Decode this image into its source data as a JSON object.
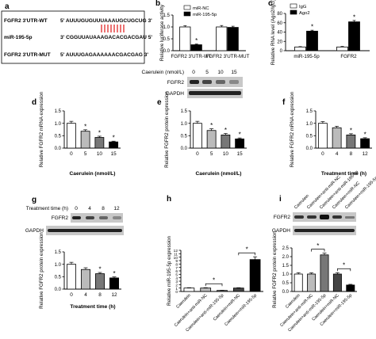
{
  "panel_a": {
    "letter": "a",
    "rows": [
      {
        "label": "FGFR2 3'UTR-WT",
        "seq": "5' AUUUGUGUUUAAAUGCUGCUG 3'"
      },
      {
        "label": "miR-195-5p",
        "seq": "3' CGGUUAUAAAGACACGACGAU 5'"
      },
      {
        "label": "FGFR2 3'UTR-MUT",
        "seq": "5' AUUUGAGAAAAAACGACGAG 3'"
      }
    ]
  },
  "wb_top": {
    "treatment_label": "Caerulein (nmol/L)",
    "lanes": [
      "0",
      "5",
      "10",
      "15"
    ],
    "bands": [
      "FGFR2",
      "GAPDH"
    ]
  },
  "wb_g": {
    "treatment_label": "Treatment time (h)",
    "lanes": [
      "0",
      "4",
      "8",
      "12"
    ],
    "bands": [
      "FGFR2",
      "GAPDH"
    ]
  },
  "wb_i": {
    "lanes": [
      "Caerulein",
      "Caerulein+anti-miR-NC",
      "Caerulein+anti-miR-195-5p",
      "Caerulein+miR-NC",
      "Caerulein+miR-195-5p"
    ],
    "bands": [
      "FGFR2",
      "GAPDH"
    ]
  },
  "chart_data": [
    {
      "id": "b",
      "type": "bar",
      "letter": "b",
      "ylabel": "Relative luciferase activity",
      "ylim": [
        0,
        1.5
      ],
      "ticks": [
        0,
        0.5,
        1.0,
        1.5
      ],
      "groups": [
        "FGFR2 3'UTR-WT",
        "FGFR2 3'UTR-MUT"
      ],
      "series": [
        {
          "name": "miR-NC",
          "values": [
            1.0,
            1.0
          ],
          "errors": [
            0.05,
            0.06
          ],
          "color": "#ffffff"
        },
        {
          "name": "miR-195-5p",
          "values": [
            0.25,
            0.98
          ],
          "errors": [
            0.03,
            0.05
          ],
          "color": "#000000"
        }
      ],
      "significance": [
        "*",
        ""
      ],
      "legend": "top-right"
    },
    {
      "id": "c",
      "type": "bar",
      "letter": "c",
      "ylabel": "Relative RNA level (Ago2/IgG)",
      "ylim": [
        0,
        80
      ],
      "ticks": [
        0,
        20,
        40,
        60,
        80
      ],
      "groups": [
        "miR-195-5p",
        "FGFR2"
      ],
      "series": [
        {
          "name": "IgG",
          "values": [
            8,
            8
          ],
          "errors": [
            0.8,
            1.2
          ],
          "color": "#ffffff"
        },
        {
          "name": "Ago2",
          "values": [
            42,
            62
          ],
          "errors": [
            2,
            3
          ],
          "color": "#000000"
        }
      ],
      "significance": [
        "*",
        "*"
      ],
      "legend": "top-left"
    },
    {
      "id": "d",
      "type": "bar",
      "letter": "d",
      "ylabel": "Relative FGFR2 mRNA expression",
      "xlabel": "Caerulein (nmol/L)",
      "ylim": [
        0,
        1.5
      ],
      "ticks": [
        0,
        0.5,
        1.0,
        1.5
      ],
      "categories": [
        "0",
        "5",
        "10",
        "15"
      ],
      "values": [
        1.0,
        0.68,
        0.43,
        0.25
      ],
      "errors": [
        0.08,
        0.06,
        0.05,
        0.03
      ],
      "colors": [
        "#ffffff",
        "#bbbbbb",
        "#777777",
        "#000000"
      ],
      "significance": [
        "",
        "*",
        "*",
        "*"
      ]
    },
    {
      "id": "e",
      "type": "bar",
      "letter": "e",
      "ylabel": "Relative FGFR2 protein expression",
      "xlabel": "Caerulein (nmol/L)",
      "ylim": [
        0,
        1.5
      ],
      "ticks": [
        0,
        0.5,
        1.0,
        1.5
      ],
      "categories": [
        "0",
        "5",
        "10",
        "15"
      ],
      "values": [
        1.0,
        0.71,
        0.53,
        0.37
      ],
      "errors": [
        0.08,
        0.07,
        0.06,
        0.04
      ],
      "colors": [
        "#ffffff",
        "#bbbbbb",
        "#777777",
        "#000000"
      ],
      "significance": [
        "",
        "*",
        "*",
        "*"
      ]
    },
    {
      "id": "f",
      "type": "bar",
      "letter": "f",
      "ylabel": "Relative FGFR2 mRNA expression",
      "xlabel": "Treatment time (h)",
      "ylim": [
        0,
        1.5
      ],
      "ticks": [
        0,
        0.5,
        1.0,
        1.5
      ],
      "categories": [
        "0",
        "4",
        "8",
        "12"
      ],
      "values": [
        1.0,
        0.82,
        0.53,
        0.38
      ],
      "errors": [
        0.07,
        0.06,
        0.05,
        0.04
      ],
      "colors": [
        "#ffffff",
        "#bbbbbb",
        "#777777",
        "#000000"
      ],
      "significance": [
        "",
        "",
        "*",
        "*"
      ]
    },
    {
      "id": "g",
      "type": "bar",
      "letter": "g",
      "ylabel": "Relative FGFR2 protein expression",
      "xlabel": "Treatment time (h)",
      "ylim": [
        0,
        1.5
      ],
      "ticks": [
        0,
        0.5,
        1.0,
        1.5
      ],
      "categories": [
        "0",
        "4",
        "8",
        "12"
      ],
      "values": [
        1.0,
        0.79,
        0.62,
        0.45
      ],
      "errors": [
        0.08,
        0.07,
        0.05,
        0.04
      ],
      "colors": [
        "#ffffff",
        "#bbbbbb",
        "#777777",
        "#000000"
      ],
      "significance": [
        "",
        "",
        "*",
        "*"
      ]
    },
    {
      "id": "h",
      "type": "bar",
      "letter": "h",
      "ylabel": "Relative miR-195-5p expression",
      "ylim": [
        0,
        12
      ],
      "ticks": [
        0,
        1,
        2,
        3,
        4,
        5,
        6,
        7,
        8,
        9,
        10,
        11,
        12
      ],
      "categories": [
        "Caerulein",
        "Caerulein+anti-miR-NC",
        "Caerulein+anti-miR-195-5p",
        "Caerulein+miR-NC",
        "Caerulein+miR-195-5p"
      ],
      "values": [
        1.0,
        1.0,
        0.3,
        1.0,
        9.3
      ],
      "errors": [
        0.1,
        0.1,
        0.05,
        0.1,
        0.8
      ],
      "colors": [
        "#ffffff",
        "#bbbbbb",
        "#777777",
        "#444444",
        "#000000"
      ],
      "brackets": [
        {
          "from": 1,
          "to": 2,
          "label": "*"
        },
        {
          "from": 3,
          "to": 4,
          "label": "*"
        }
      ]
    },
    {
      "id": "i",
      "type": "bar",
      "letter": "i",
      "ylabel": "Relative FGFR2 protein expression",
      "ylim": [
        0,
        2.5
      ],
      "ticks": [
        0,
        0.5,
        1.0,
        1.5,
        2.0,
        2.5
      ],
      "categories": [
        "Caerulein",
        "Caerulein+anti-miR-NC",
        "Caerulein+anti-miR-195-5p",
        "Caerulein+miR-NC",
        "Caerulein+miR-195-5p"
      ],
      "values": [
        1.0,
        1.0,
        2.1,
        1.0,
        0.37
      ],
      "errors": [
        0.08,
        0.07,
        0.1,
        0.08,
        0.04
      ],
      "colors": [
        "#ffffff",
        "#bbbbbb",
        "#777777",
        "#444444",
        "#000000"
      ],
      "brackets": [
        {
          "from": 1,
          "to": 2,
          "label": "*"
        },
        {
          "from": 3,
          "to": 4,
          "label": "*"
        }
      ]
    }
  ]
}
